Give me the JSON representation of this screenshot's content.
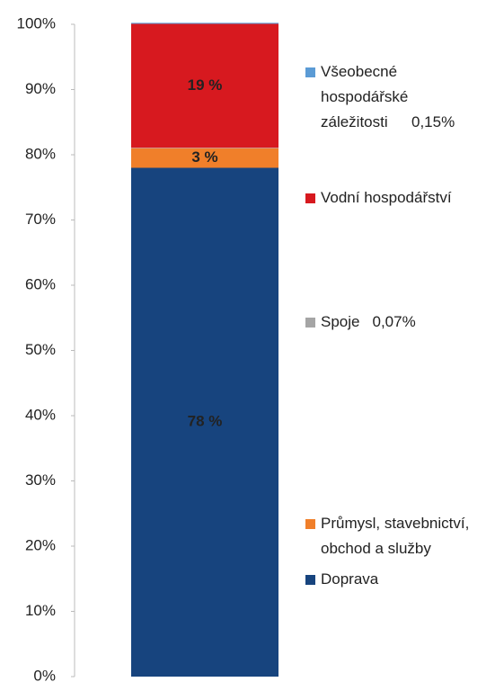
{
  "chart_data": {
    "type": "stacked_bar",
    "categories": [
      null
    ],
    "ylim": [
      0,
      100
    ],
    "yticks": [
      {
        "value": 0,
        "label": "0%"
      },
      {
        "value": 10,
        "label": "10%"
      },
      {
        "value": 20,
        "label": "20%"
      },
      {
        "value": 30,
        "label": "30%"
      },
      {
        "value": 40,
        "label": "40%"
      },
      {
        "value": 50,
        "label": "50%"
      },
      {
        "value": 60,
        "label": "60%"
      },
      {
        "value": 70,
        "label": "70%"
      },
      {
        "value": 80,
        "label": "80%"
      },
      {
        "value": 90,
        "label": "90%"
      },
      {
        "value": 100,
        "label": "100%"
      }
    ],
    "series": [
      {
        "name": "Doprava",
        "color": "#17447e",
        "values": [
          78
        ],
        "value_labels": [
          "78 %"
        ]
      },
      {
        "name": "Průmysl, stavebnictví, obchod a služby",
        "color": "#f07f2a",
        "values": [
          3
        ],
        "value_labels": [
          "3 %"
        ]
      },
      {
        "name": "Spoje",
        "color": "#a5a5a5",
        "values": [
          0.07
        ],
        "value_labels": [
          "0,07%"
        ]
      },
      {
        "name": "Vodní hospodářství",
        "color": "#d7191f",
        "values": [
          19
        ],
        "value_labels": [
          "19 %"
        ]
      },
      {
        "name": "Všeobecné hospodářské záležitosti",
        "color": "#5b9bd5",
        "values": [
          0.15
        ],
        "value_labels": [
          "0,15%"
        ]
      }
    ]
  }
}
